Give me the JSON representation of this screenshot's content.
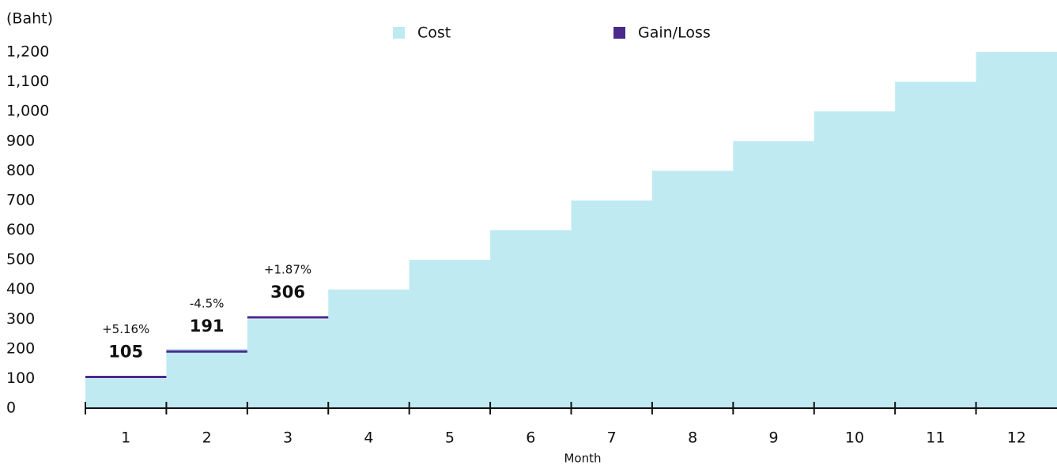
{
  "chart_data": {
    "type": "stepbar",
    "y_axis_label": "(Baht)",
    "x_axis_label": "Month",
    "categories": [
      "1",
      "2",
      "3",
      "4",
      "5",
      "6",
      "7",
      "8",
      "9",
      "10",
      "11",
      "12"
    ],
    "series": [
      {
        "name": "Cost",
        "color": "#bfeaf1",
        "values": [
          100,
          200,
          300,
          400,
          500,
          600,
          700,
          800,
          900,
          1000,
          1100,
          1200
        ]
      },
      {
        "name": "Gain/Loss",
        "color": "#4b2a8c",
        "values": [
          105,
          191,
          306,
          null,
          null,
          null,
          null,
          null,
          null,
          null,
          null,
          null
        ],
        "annotations": [
          "+5.16%",
          "-4.5%",
          "+1.87%",
          null,
          null,
          null,
          null,
          null,
          null,
          null,
          null,
          null
        ]
      }
    ],
    "ylim": [
      0,
      1200
    ],
    "yticks": [
      0,
      100,
      200,
      300,
      400,
      500,
      600,
      700,
      800,
      900,
      {
        "value": 1000,
        "label": "1,000"
      },
      {
        "value": 1100,
        "label": "1,100"
      },
      {
        "value": 1200,
        "label": "1,200"
      }
    ],
    "grid": false
  }
}
